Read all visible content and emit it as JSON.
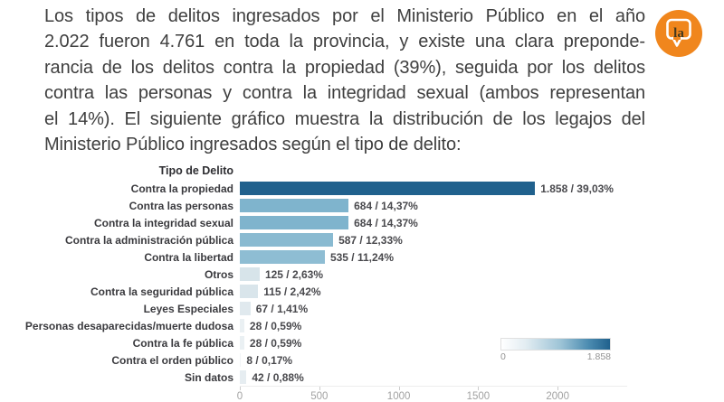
{
  "intro": {
    "lines": [
      "Los tipos de delitos ingresados por el Ministerio Público en el año",
      "2.022 fueron 4.761 en toda la provincia, y existe una clara preponde-",
      "rancia de los delitos contra la propiedad (39%), seguida por los delitos",
      "contra las personas y contra la integridad sexual (ambos representan",
      "el 14%). El siguiente gráfico muestra la distribución de los legajos del",
      "Ministerio Público ingresados según el tipo de delito:"
    ]
  },
  "logo": {
    "text": "la",
    "circle_color": "#f0861d",
    "bubble_outline_color": "#ffffff",
    "text_color": "#43391f"
  },
  "colors": {
    "paragraph_text": "#3f3f3f",
    "bar_max": "#20618d",
    "axis_labels": "#a2a2a2"
  },
  "chart_data": {
    "type": "bar",
    "orientation": "horizontal",
    "title": "Tipo de Delito",
    "xlabel": "",
    "ylabel": "Tipo de Delito",
    "total_cases": 4761,
    "year": "2.022",
    "xlim": [
      0,
      2450
    ],
    "x_ticks": [
      0,
      500,
      1000,
      1500,
      2000
    ],
    "x_tick_labels": [
      "0",
      "500",
      "1000",
      "1500",
      "2000"
    ],
    "grid": false,
    "rows": [
      {
        "label": "Contra la propiedad",
        "value": 1858,
        "pct": 39.03,
        "display": "1.858 / 39,03%",
        "color": "#20618d"
      },
      {
        "label": "Contra las personas",
        "value": 684,
        "pct": 14.37,
        "display": "684 / 14,37%",
        "color": "#7fb4cd"
      },
      {
        "label": "Contra la integridad sexual",
        "value": 684,
        "pct": 14.37,
        "display": "684 / 14,37%",
        "color": "#7fb4cd"
      },
      {
        "label": "Contra la administración pública",
        "value": 587,
        "pct": 12.33,
        "display": "587 / 12,33%",
        "color": "#89bad1"
      },
      {
        "label": "Contra la libertad",
        "value": 535,
        "pct": 11.24,
        "display": "535 / 11,24%",
        "color": "#8ebdd3"
      },
      {
        "label": "Otros",
        "value": 125,
        "pct": 2.63,
        "display": "125 / 2,63%",
        "color": "#d7e4ea"
      },
      {
        "label": "Contra la seguridad pública",
        "value": 115,
        "pct": 2.42,
        "display": "115 / 2,42%",
        "color": "#d9e5eb"
      },
      {
        "label": "Leyes Especiales",
        "value": 67,
        "pct": 1.41,
        "display": "67 / 1,41%",
        "color": "#e0e9ee"
      },
      {
        "label": "Personas desaparecidas/muerte dudosa",
        "value": 28,
        "pct": 0.59,
        "display": "28 / 0,59%",
        "color": "#eaf0f3"
      },
      {
        "label": "Contra la fe pública",
        "value": 28,
        "pct": 0.59,
        "display": "28 / 0,59%",
        "color": "#eaf0f3"
      },
      {
        "label": "Contra el orden público",
        "value": 8,
        "pct": 0.17,
        "display": "8 / 0,17%",
        "color": "#f2f5f7"
      },
      {
        "label": "Sin datos",
        "value": 42,
        "pct": 0.88,
        "display": "42 / 0,88%",
        "color": "#e6edf1"
      }
    ],
    "legend": {
      "position": "bottom-right",
      "min_label": "0",
      "max_label": "1.858",
      "gradient_from": "#ffffff",
      "gradient_to": "#20618d"
    }
  }
}
